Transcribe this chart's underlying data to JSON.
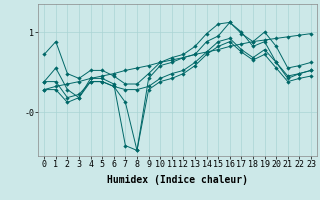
{
  "bg_color": "#cce8e8",
  "line_color": "#006868",
  "grid_color": "#aad4d4",
  "xlabel": "Humidex (Indice chaleur)",
  "xlabel_fontsize": 7,
  "tick_fontsize": 6,
  "ytick_labels": [
    "-0",
    "1"
  ],
  "ytick_vals": [
    0.0,
    1.0
  ],
  "xlim": [
    -0.5,
    23.5
  ],
  "ylim": [
    -0.55,
    1.35
  ],
  "series": [
    [
      0.72,
      0.88,
      0.48,
      0.42,
      0.52,
      0.52,
      0.45,
      0.35,
      0.35,
      0.48,
      0.62,
      0.68,
      0.72,
      0.82,
      0.98,
      1.1,
      1.12,
      0.98,
      0.88,
      1.0,
      0.82,
      0.55,
      0.58,
      0.62
    ],
    [
      0.38,
      0.38,
      0.18,
      0.22,
      0.38,
      0.38,
      0.32,
      0.28,
      0.28,
      0.32,
      0.42,
      0.48,
      0.52,
      0.62,
      0.75,
      0.88,
      0.92,
      0.78,
      0.68,
      0.78,
      0.62,
      0.45,
      0.48,
      0.52
    ],
    [
      0.38,
      0.55,
      0.28,
      0.18,
      0.42,
      0.42,
      0.35,
      -0.42,
      -0.48,
      0.42,
      0.58,
      0.62,
      0.68,
      0.72,
      0.88,
      0.95,
      1.12,
      1.0,
      0.82,
      0.88,
      0.62,
      0.42,
      0.48,
      0.52
    ],
    [
      0.28,
      0.28,
      0.12,
      0.18,
      0.38,
      0.38,
      0.32,
      0.12,
      -0.48,
      0.28,
      0.38,
      0.42,
      0.48,
      0.58,
      0.72,
      0.82,
      0.88,
      0.75,
      0.65,
      0.72,
      0.55,
      0.38,
      0.42,
      0.45
    ]
  ],
  "linear_series": [
    [
      0.28,
      0.32,
      0.35,
      0.38,
      0.42,
      0.45,
      0.48,
      0.52,
      0.55,
      0.58,
      0.62,
      0.65,
      0.68,
      0.72,
      0.75,
      0.78,
      0.82,
      0.85,
      0.88,
      0.9,
      0.92,
      0.94,
      0.96,
      0.98
    ]
  ]
}
